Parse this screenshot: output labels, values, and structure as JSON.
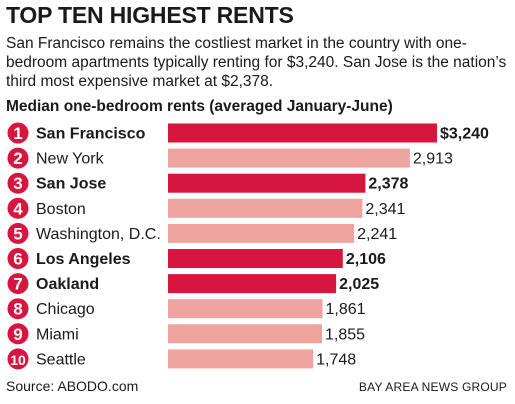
{
  "header": {
    "title": "TOP TEN HIGHEST RENTS",
    "subtitle": "San Francisco remains the costliest market in the country with one-bedroom apartments typically renting for $3,240. San Jose is the nation’s third most expensive market at $2,378.",
    "chart_heading": "Median one-bedroom rents (averaged January-June)"
  },
  "footer": {
    "source": "Source: ABODO.com",
    "credit": "BAY AREA NEWS GROUP"
  },
  "colors": {
    "highlight": "#d6163f",
    "muted": "#efa39e",
    "badge": "#d6163f"
  },
  "chart_data": {
    "type": "bar",
    "orientation": "horizontal",
    "title": "Median one-bedroom rents (averaged January-June)",
    "xlim": [
      0,
      3240
    ],
    "grid": false,
    "categories": [
      "San Francisco",
      "New York",
      "San Jose",
      "Boston",
      "Washington, D.C.",
      "Los Angeles",
      "Oakland",
      "Chicago",
      "Miami",
      "Seattle"
    ],
    "ranks": [
      "1",
      "2",
      "3",
      "4",
      "5",
      "6",
      "7",
      "8",
      "9",
      "10"
    ],
    "values": [
      3240,
      2913,
      2378,
      2341,
      2241,
      2106,
      2025,
      1861,
      1855,
      1748
    ],
    "value_labels": [
      "$3,240",
      "2,913",
      "2,378",
      "2,341",
      "2,241",
      "2,106",
      "2,025",
      "1,861",
      "1,855",
      "1,748"
    ],
    "highlighted": [
      true,
      false,
      true,
      false,
      false,
      true,
      true,
      false,
      false,
      false
    ]
  }
}
